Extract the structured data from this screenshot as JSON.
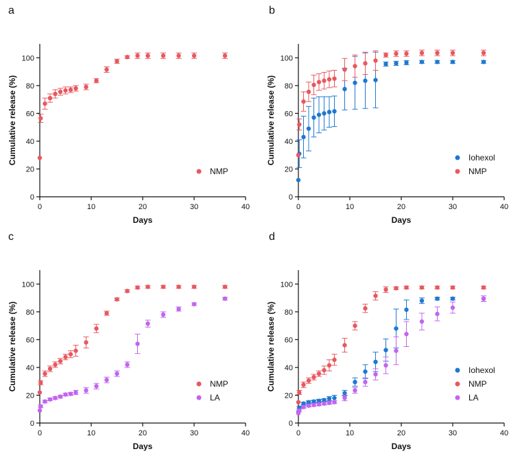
{
  "colors": {
    "nmp": "#e8585f",
    "iohexol": "#1f78d1",
    "la": "#c264f0"
  },
  "chart_data": [
    {
      "panel": "a",
      "type": "scatter",
      "xlabel": "Days",
      "ylabel": "Cumulative release (%)",
      "xlim": [
        0,
        40
      ],
      "ylim": [
        0,
        110
      ],
      "xticks": [
        0,
        10,
        20,
        30,
        40
      ],
      "yticks": [
        0,
        20,
        40,
        60,
        80,
        100
      ],
      "legend_position": "bottom-right",
      "series": [
        {
          "name": "NMP",
          "color": "#e8585f",
          "x": [
            0,
            0.17,
            1,
            2,
            3,
            4,
            5,
            6,
            7,
            9,
            11,
            13,
            15,
            17,
            19,
            21,
            24,
            27,
            30,
            36
          ],
          "y": [
            28,
            56.5,
            67,
            71,
            74,
            75.5,
            76.5,
            77,
            78,
            79,
            83.5,
            91.5,
            97.5,
            100.5,
            101.5,
            101.5,
            101.5,
            101.5,
            101.5,
            101.5
          ],
          "err": [
            0,
            3,
            4,
            3,
            3,
            2.5,
            2.5,
            2,
            2,
            2,
            1.5,
            2,
            1.5,
            1,
            2,
            2,
            2,
            2,
            2,
            2
          ]
        }
      ]
    },
    {
      "panel": "b",
      "type": "scatter",
      "xlabel": "Days",
      "ylabel": "Cumulative release (%)",
      "xlim": [
        0,
        40
      ],
      "ylim": [
        0,
        110
      ],
      "xticks": [
        0,
        10,
        20,
        30,
        40
      ],
      "yticks": [
        0,
        20,
        40,
        60,
        80,
        100
      ],
      "legend_position": "bottom-right",
      "series": [
        {
          "name": "Iohexol",
          "color": "#1f78d1",
          "x": [
            0,
            0.17,
            1,
            2,
            3,
            4,
            5,
            6,
            7,
            9,
            11,
            13,
            15,
            17,
            19,
            21,
            24,
            27,
            30,
            36
          ],
          "y": [
            12,
            31,
            43,
            49,
            57,
            59,
            60,
            61,
            61.5,
            77.5,
            82,
            83.5,
            84,
            95.5,
            96,
            96.5,
            97,
            97,
            97,
            97
          ],
          "err": [
            0,
            10,
            15,
            16,
            14,
            13,
            12,
            11,
            11,
            15,
            19,
            20,
            20,
            1.5,
            1.5,
            1.5,
            1,
            1,
            1,
            1
          ]
        },
        {
          "name": "NMP",
          "color": "#e8585f",
          "x": [
            0,
            0.17,
            1,
            2,
            3,
            4,
            5,
            6,
            7,
            9,
            11,
            13,
            15,
            17,
            19,
            21,
            24,
            27,
            30,
            36
          ],
          "y": [
            30,
            52,
            68.5,
            75.5,
            80.5,
            82.5,
            83.5,
            84.5,
            85,
            91.5,
            94,
            96,
            98,
            102,
            103,
            103,
            103.5,
            103.5,
            103.5,
            103.5
          ],
          "err": [
            0,
            4,
            7,
            7,
            7,
            6,
            6,
            6,
            6,
            8,
            8,
            8,
            7,
            1.5,
            2,
            2,
            2,
            2,
            2,
            2
          ]
        }
      ]
    },
    {
      "panel": "c",
      "type": "scatter",
      "xlabel": "Days",
      "ylabel": "Cumulative release (%)",
      "xlim": [
        0,
        40
      ],
      "ylim": [
        0,
        110
      ],
      "xticks": [
        0,
        10,
        20,
        30,
        40
      ],
      "yticks": [
        0,
        20,
        40,
        60,
        80,
        100
      ],
      "legend_position": "bottom-right",
      "series": [
        {
          "name": "NMP",
          "color": "#e8585f",
          "x": [
            0,
            0.17,
            1,
            2,
            3,
            4,
            5,
            6,
            7,
            9,
            11,
            13,
            15,
            17,
            19,
            21,
            24,
            27,
            30,
            36
          ],
          "y": [
            22,
            29,
            35.5,
            39,
            42,
            44.5,
            47.5,
            49.5,
            52,
            58,
            68,
            79,
            89,
            95,
            97.5,
            98,
            98,
            98,
            98,
            98
          ],
          "err": [
            0,
            1.5,
            2,
            2,
            2,
            2,
            2,
            2.5,
            4,
            4,
            3,
            1.5,
            1,
            1,
            1,
            1,
            1,
            1,
            1,
            1
          ]
        },
        {
          "name": "LA",
          "color": "#c264f0",
          "x": [
            0,
            0.17,
            1,
            2,
            3,
            4,
            5,
            6,
            7,
            9,
            11,
            13,
            15,
            17,
            19,
            21,
            24,
            27,
            30,
            36
          ],
          "y": [
            9,
            12,
            15.5,
            17,
            18,
            19,
            20.5,
            21,
            22,
            23.5,
            26.5,
            31,
            35.5,
            42,
            57,
            71.5,
            78,
            82,
            85.5,
            89.5
          ],
          "err": [
            0,
            1,
            1,
            1,
            1,
            1,
            1,
            1,
            1.5,
            2,
            2,
            2,
            2,
            2,
            7,
            2.5,
            2,
            1.5,
            1,
            1
          ]
        }
      ]
    },
    {
      "panel": "d",
      "type": "scatter",
      "xlabel": "Days",
      "ylabel": "Cumulative release (%)",
      "xlim": [
        0,
        40
      ],
      "ylim": [
        0,
        110
      ],
      "xticks": [
        0,
        10,
        20,
        30,
        40
      ],
      "yticks": [
        0,
        20,
        40,
        60,
        80,
        100
      ],
      "legend_position": "bottom-right",
      "series": [
        {
          "name": "Iohexol",
          "color": "#1f78d1",
          "x": [
            0,
            0.17,
            1,
            2,
            3,
            4,
            5,
            6,
            7,
            9,
            11,
            13,
            15,
            17,
            19,
            21,
            24,
            27,
            30,
            36
          ],
          "y": [
            8,
            11,
            14,
            15,
            15.5,
            16,
            16.5,
            17.5,
            18,
            21.5,
            29.5,
            37,
            44,
            52.5,
            68,
            81.5,
            88,
            89.5,
            89.5,
            89.5
          ],
          "err": [
            0,
            1,
            1,
            1,
            1,
            1,
            1,
            1.5,
            2,
            2,
            3,
            5,
            7,
            8,
            14,
            7,
            2,
            1,
            1,
            2
          ]
        },
        {
          "name": "NMP",
          "color": "#e8585f",
          "x": [
            0,
            0.17,
            1,
            2,
            3,
            4,
            5,
            6,
            7,
            9,
            11,
            13,
            15,
            17,
            19,
            21,
            24,
            27,
            30,
            36
          ],
          "y": [
            15,
            22,
            27.5,
            30.5,
            33,
            35.5,
            38,
            41.5,
            45.5,
            56,
            70,
            82.5,
            91.5,
            96,
            97,
            97.5,
            97.5,
            97.5,
            97.5,
            97.5
          ],
          "err": [
            0,
            1.5,
            2,
            2,
            2,
            2,
            3,
            4,
            4,
            5,
            3,
            3,
            3,
            2,
            1,
            1,
            1,
            1,
            1,
            1
          ]
        },
        {
          "name": "LA",
          "color": "#c264f0",
          "x": [
            0,
            0.17,
            1,
            2,
            3,
            4,
            5,
            6,
            7,
            9,
            11,
            13,
            15,
            17,
            19,
            21,
            24,
            27,
            30,
            36
          ],
          "y": [
            7,
            9,
            11.5,
            12.5,
            13,
            13.5,
            14,
            14.5,
            15,
            18,
            23.5,
            29.5,
            35,
            41.5,
            52,
            64,
            73,
            78.5,
            83,
            89.5
          ],
          "err": [
            0,
            1,
            1,
            1,
            1,
            1,
            1,
            1,
            1,
            2,
            2,
            3,
            4,
            6,
            10,
            9,
            6,
            5,
            4,
            2
          ]
        }
      ]
    }
  ]
}
